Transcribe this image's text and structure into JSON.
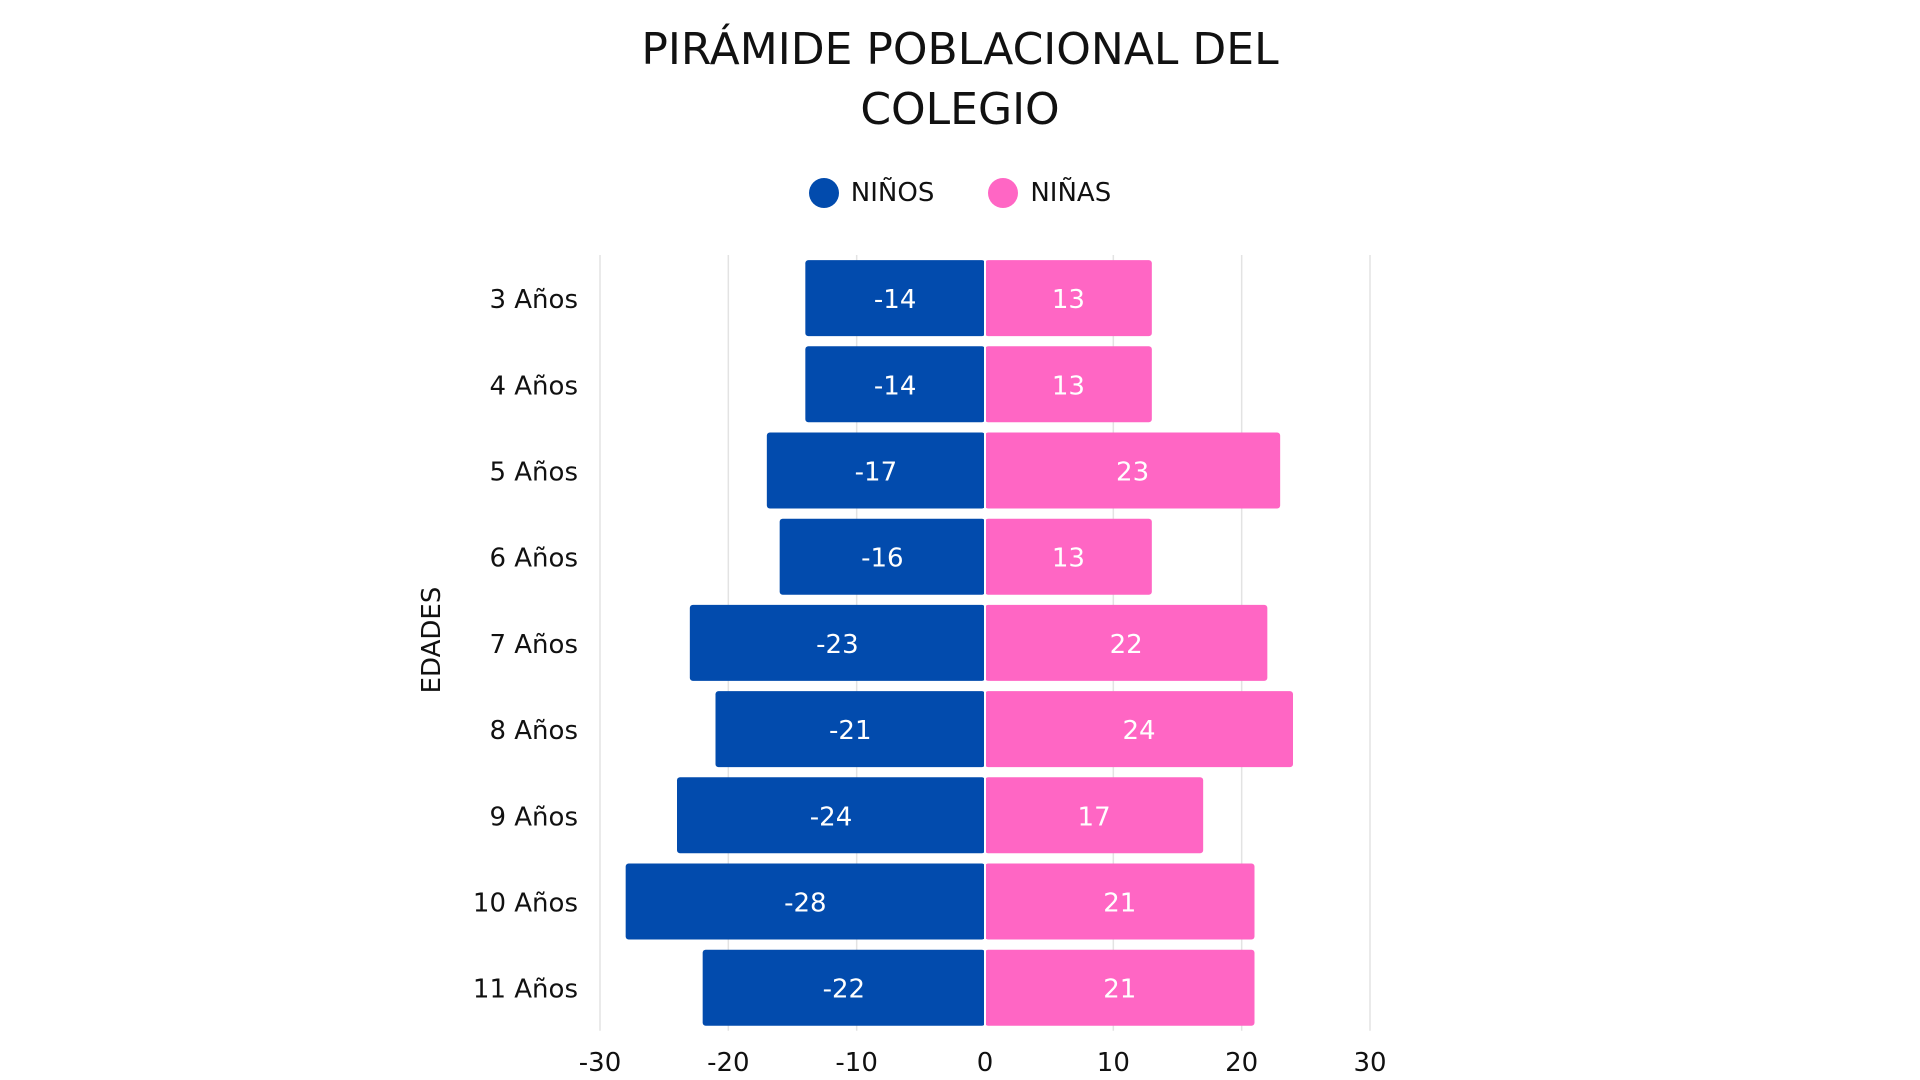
{
  "chart_data": {
    "type": "bar",
    "orientation": "horizontal",
    "title_lines": [
      "PIRÁMIDE POBLACIONAL DEL",
      "COLEGIO"
    ],
    "ylabel": "EDADES",
    "xlabel": "",
    "categories": [
      "3 Años",
      "4 Años",
      "5 Años",
      "6 Años",
      "7 Años",
      "8 Años",
      "9 Años",
      "10 Años",
      "11 Años"
    ],
    "series": [
      {
        "name": "NIÑOS",
        "color": "#024BAD",
        "values": [
          -14,
          -14,
          -17,
          -16,
          -23,
          -21,
          -24,
          -28,
          -22
        ]
      },
      {
        "name": "NIÑAS",
        "color": "#FF66C4",
        "values": [
          13,
          13,
          23,
          13,
          22,
          24,
          17,
          21,
          21
        ]
      }
    ],
    "xlim": [
      -30,
      30
    ],
    "xticks": [
      -30,
      -20,
      -10,
      0,
      10,
      20,
      30
    ],
    "grid": true,
    "legend_position": "top-center",
    "data_labels": true
  }
}
